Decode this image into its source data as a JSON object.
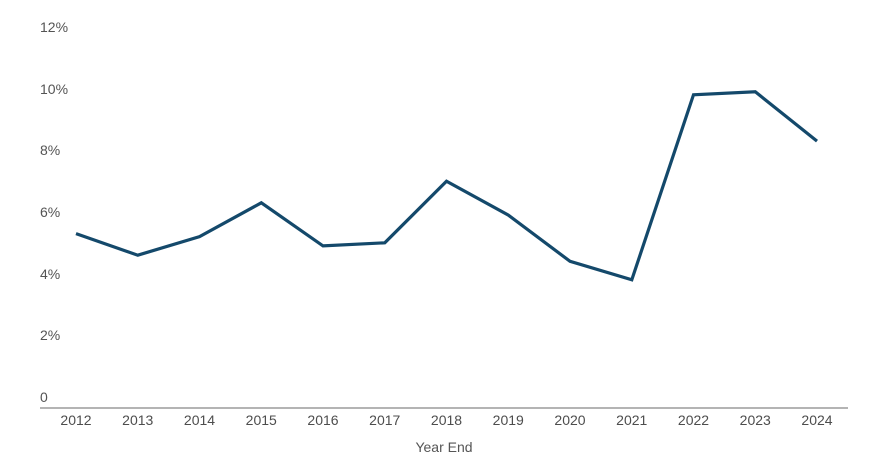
{
  "chart_data": {
    "type": "line",
    "title": "",
    "xlabel": "Year End",
    "ylabel": "",
    "categories": [
      "2012",
      "2013",
      "2014",
      "2015",
      "2016",
      "2017",
      "2018",
      "2019",
      "2020",
      "2021",
      "2022",
      "2023",
      "2024"
    ],
    "values": [
      5.3,
      4.6,
      5.2,
      6.3,
      4.9,
      5.0,
      7.0,
      5.9,
      4.4,
      3.8,
      9.8,
      9.9,
      8.3
    ],
    "ylim": [
      0,
      12
    ],
    "ytick_values": [
      0,
      2,
      4,
      6,
      8,
      10,
      12
    ],
    "ytick_labels": [
      "0",
      "2%",
      "4%",
      "6%",
      "8%",
      "10%",
      "12%"
    ],
    "grid": false,
    "legend": false,
    "line_color": "#14496b",
    "axis_color": "#b4b4b4",
    "tick_label_color": "#4d4d4d"
  }
}
